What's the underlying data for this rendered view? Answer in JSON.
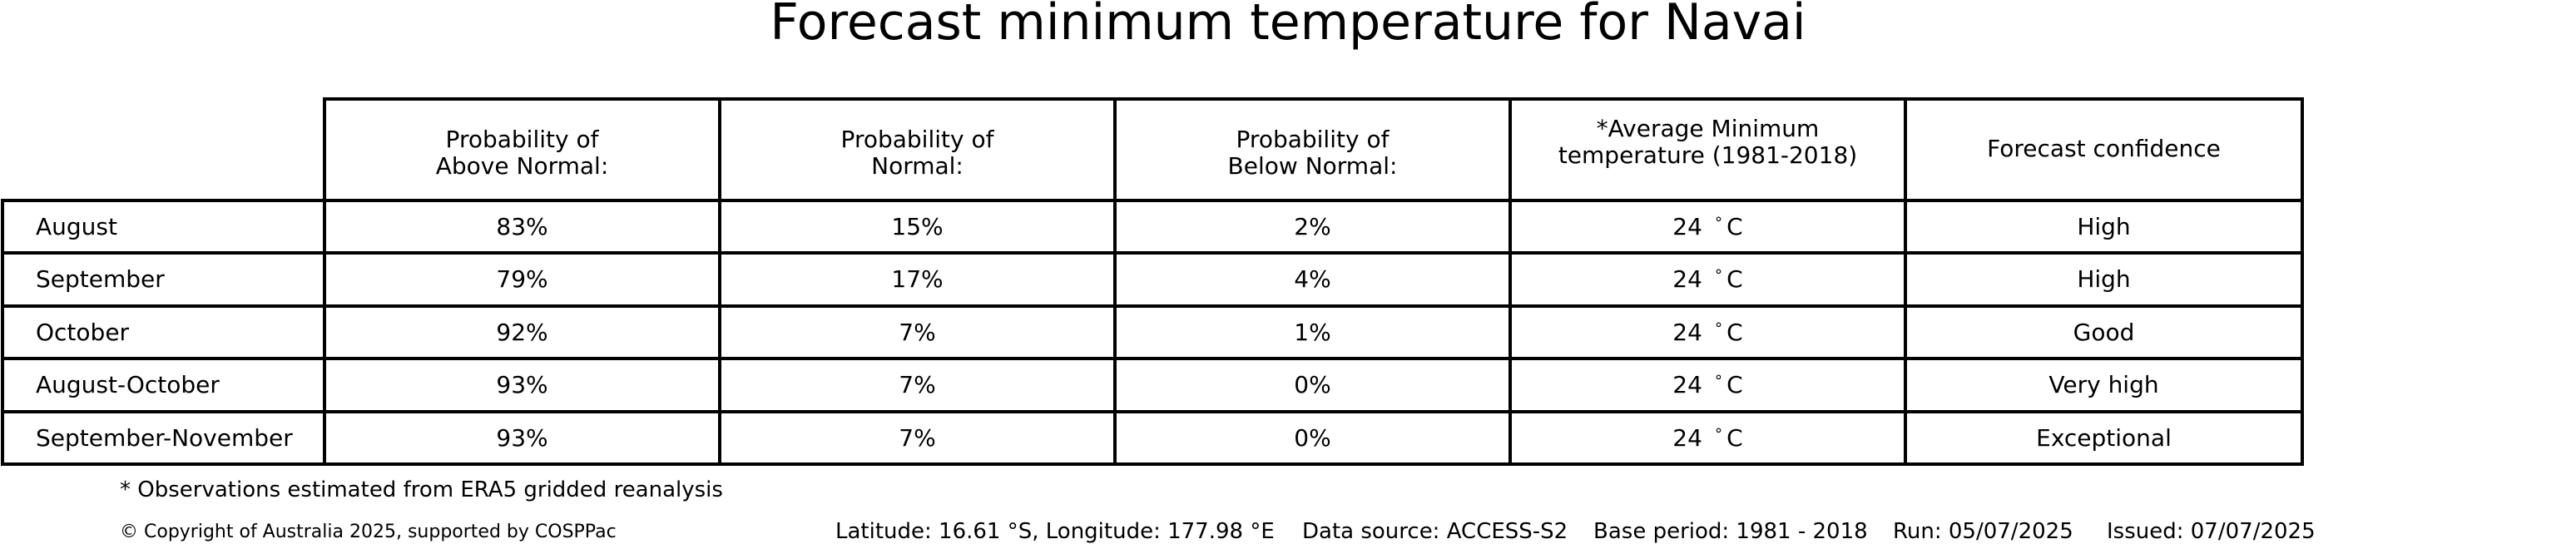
{
  "chart_data": {
    "type": "table",
    "title": "Forecast minimum temperature for Navai",
    "columns": [
      [
        "Probability of",
        "Above Normal:"
      ],
      [
        "Probability of",
        "Normal:"
      ],
      [
        "Probability of",
        "Below Normal:"
      ],
      [
        "*Average Minimum",
        "temperature (1981-2018)"
      ],
      [
        "Forecast confidence"
      ]
    ],
    "rows": [
      {
        "period": "August",
        "above": "83%",
        "normal": "15%",
        "below": "2%",
        "avg_value": "24",
        "avg_unit": "C",
        "confidence": "High"
      },
      {
        "period": "September",
        "above": "79%",
        "normal": "17%",
        "below": "4%",
        "avg_value": "24",
        "avg_unit": "C",
        "confidence": "High"
      },
      {
        "period": "October",
        "above": "92%",
        "normal": "7%",
        "below": "1%",
        "avg_value": "24",
        "avg_unit": "C",
        "confidence": "Good"
      },
      {
        "period": "August-October",
        "above": "93%",
        "normal": "7%",
        "below": "0%",
        "avg_value": "24",
        "avg_unit": "C",
        "confidence": "Very high"
      },
      {
        "period": "September-November",
        "above": "93%",
        "normal": "7%",
        "below": "0%",
        "avg_value": "24",
        "avg_unit": "C",
        "confidence": "Exceptional"
      }
    ],
    "degree_symbol": "∘"
  },
  "footnote": "* Observations estimated from ERA5 gridded reanalysis",
  "copyright": "© Copyright of Australia 2025, supported by COSPPac",
  "footer": {
    "location": "Latitude: 16.61 °S, Longitude: 177.98 °E",
    "data_source": "Data source: ACCESS-S2",
    "base_period": "Base period: 1981 - 2018",
    "run": "Run: 05/07/2025",
    "issued": "Issued: 07/07/2025"
  }
}
